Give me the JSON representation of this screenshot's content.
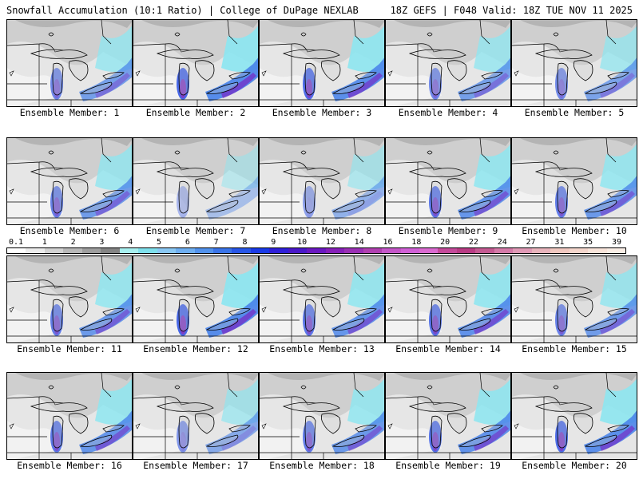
{
  "header": {
    "left_title": "Snowfall Accumulation (10:1 Ratio) | College of DuPage NEXLAB",
    "right_title": "18Z GEFS | F048 Valid: 18Z TUE NOV 11 2025"
  },
  "members": [
    {
      "label": "Ensemble Member: 1",
      "intensity": 0.6
    },
    {
      "label": "Ensemble Member: 2",
      "intensity": 0.9
    },
    {
      "label": "Ensemble Member: 3",
      "intensity": 0.85
    },
    {
      "label": "Ensemble Member: 4",
      "intensity": 0.6
    },
    {
      "label": "Ensemble Member: 5",
      "intensity": 0.55
    },
    {
      "label": "Ensemble Member: 6",
      "intensity": 0.65
    },
    {
      "label": "Ensemble Member: 7",
      "intensity": 0.15
    },
    {
      "label": "Ensemble Member: 8",
      "intensity": 0.35
    },
    {
      "label": "Ensemble Member: 9",
      "intensity": 0.75
    },
    {
      "label": "Ensemble Member: 10",
      "intensity": 0.7
    },
    {
      "label": "Ensemble Member: 11",
      "intensity": 0.7
    },
    {
      "label": "Ensemble Member: 12",
      "intensity": 0.9
    },
    {
      "label": "Ensemble Member: 13",
      "intensity": 0.75
    },
    {
      "label": "Ensemble Member: 14",
      "intensity": 0.8
    },
    {
      "label": "Ensemble Member: 15",
      "intensity": 0.65
    },
    {
      "label": "Ensemble Member: 16",
      "intensity": 0.75
    },
    {
      "label": "Ensemble Member: 17",
      "intensity": 0.45
    },
    {
      "label": "Ensemble Member: 18",
      "intensity": 0.7
    },
    {
      "label": "Ensemble Member: 19",
      "intensity": 0.8
    },
    {
      "label": "Ensemble Member: 20",
      "intensity": 0.85
    }
  ],
  "colorbar": {
    "labels": [
      "0.1",
      "1",
      "2",
      "3",
      "4",
      "5",
      "6",
      "7",
      "8",
      "9",
      "10",
      "12",
      "14",
      "16",
      "18",
      "20",
      "22",
      "24",
      "27",
      "31",
      "35",
      "39"
    ],
    "colors": [
      "#ffffff",
      "#ececec",
      "#d2d2d2",
      "#b8b8b8",
      "#9e9e9e",
      "#848484",
      "#a8f0f0",
      "#7fe0ec",
      "#8ac8f4",
      "#6eaef0",
      "#5292ec",
      "#3a74e8",
      "#2856e6",
      "#1a3ae6",
      "#3020d8",
      "#4a18c8",
      "#6a18c0",
      "#8620b8",
      "#9a30b4",
      "#b040b0",
      "#c456c8",
      "#d060d6",
      "#da6ad0",
      "#c44a9a",
      "#b83c84",
      "#c45a92",
      "#d47aa8",
      "#e09ab6",
      "#e8b4bc",
      "#f0c8c0",
      "#f4d6cc",
      "#f8e4da",
      "#faeee6"
    ]
  }
}
